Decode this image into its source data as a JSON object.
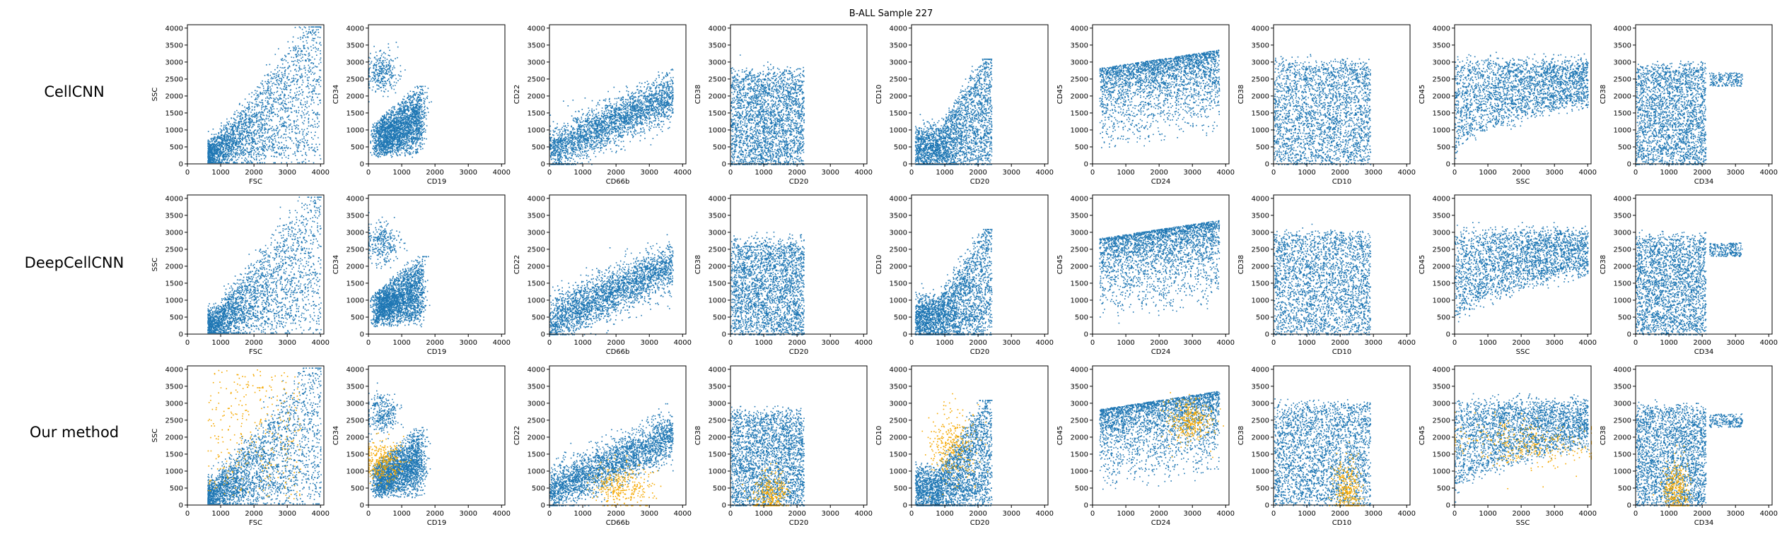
{
  "figure": {
    "title": "B-ALL Sample 227",
    "rows": [
      "CellCNN",
      "DeepCellCNN",
      "Our method"
    ]
  },
  "colors": {
    "points": "#1f77b4",
    "highlight": "#f5a800",
    "axis": "#000000"
  },
  "chart_data": {
    "type": "scatter",
    "title": "B-ALL Sample 227",
    "layout": "grid 3 rows x 9 columns",
    "xlim": [
      0,
      4100
    ],
    "ylim": [
      0,
      4100
    ],
    "ticks": [
      0,
      500,
      1000,
      1500,
      2000,
      2500,
      3000,
      3500,
      4000
    ],
    "x_ticks": [
      0,
      1000,
      2000,
      3000,
      4000
    ],
    "panels": [
      {
        "x_label": "FSC",
        "y_label": "SSC"
      },
      {
        "x_label": "CD19",
        "y_label": "CD34"
      },
      {
        "x_label": "CD66b",
        "y_label": "CD22"
      },
      {
        "x_label": "CD20",
        "y_label": "CD38"
      },
      {
        "x_label": "CD20",
        "y_label": "CD10"
      },
      {
        "x_label": "CD24",
        "y_label": "CD45"
      },
      {
        "x_label": "CD10",
        "y_label": "CD38"
      },
      {
        "x_label": "SSC",
        "y_label": "CD45"
      },
      {
        "x_label": "CD34",
        "y_label": "CD38"
      }
    ],
    "series": [
      {
        "name": "",
        "color": "#1f77b4",
        "role": "all cells"
      },
      {
        "name": "",
        "color": "#f5a800",
        "role": "highlighted cells (Our method row only)"
      }
    ]
  }
}
